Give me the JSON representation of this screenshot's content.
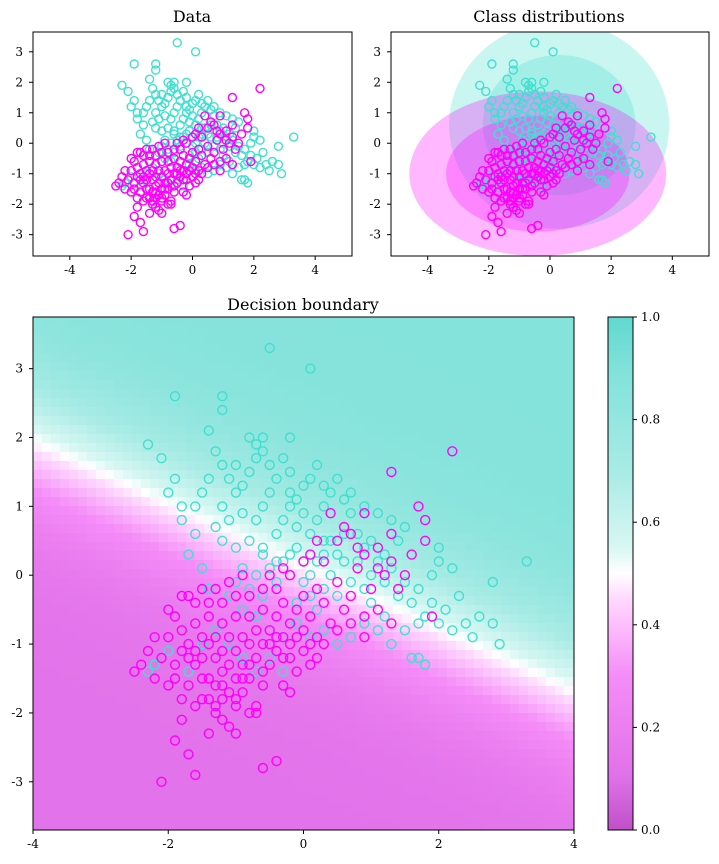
{
  "colors": {
    "class0": "#ff00ff",
    "class1": "#40e0d0"
  },
  "chart_data": [
    {
      "name": "data",
      "type": "scatter",
      "title": "Data",
      "xticks": [
        "-4",
        "-2",
        "0",
        "2",
        "4"
      ],
      "yticks": [
        "3",
        "2",
        "1",
        "0",
        "-1",
        "-2",
        "-3"
      ],
      "xlim": [
        -5.2,
        5.2
      ],
      "ylim": [
        -3.7,
        3.65
      ]
    },
    {
      "name": "class-distributions",
      "type": "scatter",
      "title": "Class distributions",
      "xticks": [
        "-4",
        "-2",
        "0",
        "2",
        "4"
      ],
      "yticks": [
        "3",
        "2",
        "1",
        "0",
        "-1",
        "-2",
        "-3"
      ],
      "xlim": [
        -5.2,
        5.2
      ],
      "ylim": [
        -3.7,
        3.65
      ],
      "ellipses": [
        {
          "class": "class1",
          "cx": 0.3,
          "cy": 0.6,
          "rx": 3.6,
          "ry": 3.4,
          "opacity": 0.28
        },
        {
          "class": "class1",
          "cx": 0.3,
          "cy": 0.6,
          "rx": 2.5,
          "ry": 2.3,
          "opacity": 0.28
        },
        {
          "class": "class0",
          "cx": -0.4,
          "cy": -1.0,
          "rx": 4.2,
          "ry": 2.7,
          "opacity": 0.28
        },
        {
          "class": "class0",
          "cx": -0.4,
          "cy": -1.0,
          "rx": 3.0,
          "ry": 1.9,
          "opacity": 0.28
        }
      ]
    },
    {
      "name": "decision-boundary",
      "type": "heatmap",
      "title": "Decision boundary",
      "xticks": [
        "-4",
        "-2",
        "0",
        "2",
        "4"
      ],
      "yticks": [
        "3",
        "2",
        "1",
        "0",
        "-1",
        "-2",
        "-3"
      ],
      "xlim": [
        -4,
        4
      ],
      "ylim": [
        -3.7,
        3.75
      ],
      "boundary": {
        "w0": -0.3,
        "w1": 1.0,
        "w2": 2.2,
        "scale": 1.4
      },
      "colorbar": {
        "ticks": [
          "1.0",
          "0.8",
          "0.6",
          "0.4",
          "0.2",
          "0.0"
        ],
        "range": [
          0,
          1
        ]
      }
    }
  ],
  "points": {
    "class1": [
      [
        -2.3,
        1.9
      ],
      [
        -2.1,
        1.7
      ],
      [
        -1.9,
        1.4
      ],
      [
        -1.8,
        1.0
      ],
      [
        -2.0,
        1.2
      ],
      [
        -1.8,
        0.8
      ],
      [
        -1.6,
        0.6
      ],
      [
        -1.7,
        0.3
      ],
      [
        -1.5,
        0.1
      ],
      [
        -1.4,
        -0.2
      ],
      [
        -1.9,
        2.6
      ],
      [
        -1.4,
        2.1
      ],
      [
        -1.3,
        1.8
      ],
      [
        -1.2,
        1.6
      ],
      [
        -1.1,
        1.4
      ],
      [
        -1.4,
        1.4
      ],
      [
        -1.5,
        1.2
      ],
      [
        -1.6,
        1.0
      ],
      [
        -1.2,
        1.0
      ],
      [
        -1.0,
        1.2
      ],
      [
        -1.0,
        1.6
      ],
      [
        -0.9,
        1.3
      ],
      [
        -0.8,
        1.5
      ],
      [
        -0.7,
        1.7
      ],
      [
        -0.7,
        1.9
      ],
      [
        -0.8,
        2.0
      ],
      [
        -0.6,
        1.8
      ],
      [
        -0.5,
        1.6
      ],
      [
        -0.4,
        1.4
      ],
      [
        -0.5,
        1.2
      ],
      [
        -0.6,
        1.0
      ],
      [
        -0.7,
        0.8
      ],
      [
        -0.9,
        0.9
      ],
      [
        -1.1,
        0.8
      ],
      [
        -1.3,
        0.7
      ],
      [
        -1.2,
        0.5
      ],
      [
        -1.0,
        0.4
      ],
      [
        -0.8,
        0.5
      ],
      [
        -0.6,
        0.4
      ],
      [
        -0.4,
        0.6
      ],
      [
        -0.3,
        0.8
      ],
      [
        -0.2,
        1.0
      ],
      [
        -0.1,
        0.7
      ],
      [
        0.0,
        0.9
      ],
      [
        0.1,
        0.6
      ],
      [
        0.2,
        0.8
      ],
      [
        0.3,
        1.0
      ],
      [
        0.4,
        1.2
      ],
      [
        0.3,
        0.5
      ],
      [
        0.5,
        0.3
      ],
      [
        0.6,
        0.6
      ],
      [
        0.7,
        0.9
      ],
      [
        0.6,
        1.1
      ],
      [
        0.5,
        1.4
      ],
      [
        0.3,
        1.3
      ],
      [
        0.2,
        1.6
      ],
      [
        0.1,
        1.4
      ],
      [
        -0.2,
        1.5
      ],
      [
        -0.3,
        1.7
      ],
      [
        -1.2,
        2.4
      ],
      [
        -1.2,
        2.6
      ],
      [
        -0.6,
        2.0
      ],
      [
        -0.2,
        2.0
      ],
      [
        -0.5,
        3.3
      ],
      [
        0.1,
        3.0
      ],
      [
        0.8,
        0.2
      ],
      [
        0.9,
        0.4
      ],
      [
        1.0,
        0.0
      ],
      [
        1.1,
        0.2
      ],
      [
        1.2,
        -0.1
      ],
      [
        1.3,
        0.1
      ],
      [
        1.4,
        -0.3
      ],
      [
        1.5,
        -0.1
      ],
      [
        1.6,
        -0.4
      ],
      [
        1.7,
        -0.2
      ],
      [
        1.8,
        -0.6
      ],
      [
        1.9,
        -0.4
      ],
      [
        2.0,
        -0.7
      ],
      [
        2.1,
        -0.5
      ],
      [
        2.2,
        -0.8
      ],
      [
        2.4,
        -0.7
      ],
      [
        2.5,
        -0.9
      ],
      [
        2.6,
        -0.6
      ],
      [
        2.8,
        -0.7
      ],
      [
        2.8,
        -0.1
      ],
      [
        3.3,
        0.2
      ],
      [
        2.9,
        -1.0
      ],
      [
        2.3,
        -0.3
      ],
      [
        2.2,
        0.1
      ],
      [
        2.0,
        0.2
      ],
      [
        2.0,
        0.4
      ],
      [
        1.9,
        0.0
      ],
      [
        1.7,
        -0.7
      ],
      [
        1.5,
        -0.8
      ],
      [
        1.2,
        -0.6
      ],
      [
        1.0,
        -0.4
      ],
      [
        0.9,
        -0.2
      ],
      [
        0.7,
        -0.1
      ],
      [
        0.5,
        -0.3
      ],
      [
        0.4,
        0.0
      ],
      [
        0.3,
        -0.2
      ],
      [
        0.2,
        -0.5
      ],
      [
        0.1,
        -0.3
      ],
      [
        0.0,
        -0.1
      ],
      [
        -0.1,
        -0.4
      ],
      [
        -0.2,
        0.0
      ],
      [
        -0.3,
        0.2
      ],
      [
        -0.4,
        -0.1
      ],
      [
        -0.5,
        0.1
      ],
      [
        -0.6,
        -0.3
      ],
      [
        -0.7,
        0.0
      ],
      [
        -0.8,
        -0.2
      ],
      [
        -0.9,
        0.1
      ],
      [
        -1.0,
        -0.1
      ],
      [
        -1.1,
        -0.3
      ],
      [
        -0.9,
        -0.5
      ],
      [
        -0.7,
        -0.6
      ],
      [
        -0.5,
        -0.8
      ],
      [
        -0.3,
        -0.9
      ],
      [
        -0.1,
        -0.7
      ],
      [
        0.1,
        -0.9
      ],
      [
        0.3,
        -0.8
      ],
      [
        0.5,
        -1.0
      ],
      [
        0.7,
        -0.9
      ],
      [
        0.9,
        -0.7
      ],
      [
        1.1,
        -0.8
      ],
      [
        1.3,
        -1.0
      ],
      [
        1.7,
        -1.2
      ],
      [
        1.8,
        -1.3
      ],
      [
        1.6,
        -1.2
      ],
      [
        -1.7,
        -1.4
      ],
      [
        -1.5,
        -1.0
      ],
      [
        -1.3,
        -0.8
      ],
      [
        -1.1,
        -1.0
      ],
      [
        -0.9,
        -1.2
      ],
      [
        -0.7,
        -1.4
      ],
      [
        -0.5,
        -1.2
      ],
      [
        -0.3,
        -1.4
      ],
      [
        -2.2,
        -1.3
      ],
      [
        -2.3,
        -1.4
      ],
      [
        -2.0,
        -1.1
      ],
      [
        0.3,
        0.3
      ],
      [
        0.4,
        0.5
      ],
      [
        0.6,
        0.2
      ],
      [
        0.8,
        0.6
      ],
      [
        1.0,
        0.5
      ],
      [
        1.2,
        0.3
      ],
      [
        1.4,
        0.5
      ],
      [
        1.5,
        0.7
      ],
      [
        1.3,
        0.8
      ],
      [
        1.1,
        0.9
      ],
      [
        0.9,
        1.0
      ],
      [
        0.7,
        1.2
      ],
      [
        -0.1,
        1.1
      ],
      [
        0.0,
        1.3
      ],
      [
        -0.2,
        1.2
      ],
      [
        0.2,
        0.2
      ],
      [
        0.0,
        0.2
      ],
      [
        -0.2,
        0.3
      ],
      [
        -0.4,
        0.2
      ],
      [
        -0.6,
        0.3
      ],
      [
        -0.1,
        0.4
      ],
      [
        0.1,
        0.0
      ]
    ],
    "class0": [
      [
        -2.1,
        -1.2
      ],
      [
        -2.0,
        -0.9
      ],
      [
        -1.9,
        -1.5
      ],
      [
        -1.8,
        -1.1
      ],
      [
        -1.8,
        -0.8
      ],
      [
        -1.7,
        -1.6
      ],
      [
        -1.7,
        -1.0
      ],
      [
        -1.6,
        -1.3
      ],
      [
        -1.6,
        -0.7
      ],
      [
        -1.5,
        -1.8
      ],
      [
        -1.5,
        -1.2
      ],
      [
        -1.5,
        -0.9
      ],
      [
        -1.4,
        -1.5
      ],
      [
        -1.4,
        -1.0
      ],
      [
        -1.4,
        -0.6
      ],
      [
        -1.3,
        -2.0
      ],
      [
        -1.3,
        -1.6
      ],
      [
        -1.3,
        -1.2
      ],
      [
        -1.3,
        -0.9
      ],
      [
        -1.2,
        -1.8
      ],
      [
        -1.2,
        -1.4
      ],
      [
        -1.2,
        -1.1
      ],
      [
        -1.2,
        -0.7
      ],
      [
        -1.1,
        -2.2
      ],
      [
        -1.1,
        -1.7
      ],
      [
        -1.1,
        -1.3
      ],
      [
        -1.1,
        -0.9
      ],
      [
        -1.0,
        -1.9
      ],
      [
        -1.0,
        -1.5
      ],
      [
        -1.0,
        -1.1
      ],
      [
        -1.0,
        -0.6
      ],
      [
        -0.9,
        -1.7
      ],
      [
        -0.9,
        -1.3
      ],
      [
        -0.9,
        -0.9
      ],
      [
        -0.8,
        -1.5
      ],
      [
        -0.8,
        -1.0
      ],
      [
        -0.8,
        -0.6
      ],
      [
        -0.7,
        -1.9
      ],
      [
        -0.7,
        -1.2
      ],
      [
        -0.7,
        -0.8
      ],
      [
        -0.6,
        -1.6
      ],
      [
        -0.6,
        -1.0
      ],
      [
        -0.6,
        -0.5
      ],
      [
        -0.5,
        -1.3
      ],
      [
        -0.5,
        -0.8
      ],
      [
        -0.4,
        -1.1
      ],
      [
        -0.4,
        -0.6
      ],
      [
        -0.3,
        -0.9
      ],
      [
        -0.3,
        -0.4
      ],
      [
        -0.2,
        -1.2
      ],
      [
        -0.2,
        -0.7
      ],
      [
        -0.1,
        -0.5
      ],
      [
        0.0,
        -0.8
      ],
      [
        0.0,
        -0.3
      ],
      [
        0.1,
        -0.6
      ],
      [
        0.2,
        -0.2
      ],
      [
        0.3,
        -0.4
      ],
      [
        0.4,
        -0.7
      ],
      [
        0.5,
        -0.1
      ],
      [
        0.6,
        -0.5
      ],
      [
        0.7,
        -0.3
      ],
      [
        0.8,
        0.1
      ],
      [
        0.9,
        -0.6
      ],
      [
        1.0,
        -0.2
      ],
      [
        1.1,
        0.4
      ],
      [
        1.2,
        0.0
      ],
      [
        1.3,
        0.6
      ],
      [
        1.4,
        -0.2
      ],
      [
        1.6,
        0.3
      ],
      [
        1.8,
        0.5
      ],
      [
        1.9,
        -0.6
      ],
      [
        1.7,
        1.0
      ],
      [
        1.8,
        0.8
      ],
      [
        2.2,
        1.8
      ],
      [
        1.3,
        1.5
      ],
      [
        0.9,
        0.9
      ],
      [
        0.8,
        0.4
      ],
      [
        0.6,
        0.7
      ],
      [
        0.4,
        0.9
      ],
      [
        0.2,
        0.5
      ],
      [
        0.0,
        0.2
      ],
      [
        -0.2,
        0.0
      ],
      [
        -0.4,
        -0.2
      ],
      [
        -0.6,
        -0.2
      ],
      [
        -0.8,
        -0.3
      ],
      [
        -1.0,
        -0.3
      ],
      [
        -1.2,
        -0.4
      ],
      [
        -1.4,
        -0.4
      ],
      [
        -1.6,
        -0.4
      ],
      [
        -1.8,
        -0.3
      ],
      [
        -2.0,
        -0.5
      ],
      [
        -2.2,
        -1.5
      ],
      [
        -2.5,
        -1.4
      ],
      [
        -2.1,
        -3.0
      ],
      [
        -1.9,
        -2.4
      ],
      [
        -1.8,
        -2.1
      ],
      [
        -1.7,
        -2.6
      ],
      [
        -1.6,
        -2.9
      ],
      [
        -1.4,
        -2.3
      ],
      [
        -1.3,
        -1.9
      ],
      [
        -1.2,
        -2.1
      ],
      [
        -1.0,
        -2.3
      ],
      [
        -0.8,
        -2.0
      ],
      [
        -0.7,
        -2.0
      ],
      [
        -0.6,
        -2.8
      ],
      [
        -0.4,
        -2.7
      ],
      [
        -0.3,
        -1.6
      ],
      [
        -0.2,
        -1.7
      ],
      [
        -0.1,
        -1.4
      ],
      [
        0.0,
        -1.1
      ],
      [
        0.1,
        -1.3
      ],
      [
        0.2,
        -0.9
      ],
      [
        0.3,
        -1.0
      ],
      [
        0.5,
        -0.8
      ],
      [
        0.7,
        -0.7
      ],
      [
        0.9,
        -0.9
      ],
      [
        1.1,
        -0.5
      ],
      [
        1.3,
        -0.7
      ],
      [
        -2.4,
        -1.3
      ],
      [
        -2.3,
        -1.1
      ],
      [
        -2.2,
        -0.9
      ],
      [
        -1.9,
        -0.6
      ],
      [
        -1.7,
        -0.3
      ],
      [
        -1.5,
        -0.2
      ],
      [
        -1.3,
        -0.2
      ],
      [
        -1.1,
        -0.1
      ],
      [
        -0.9,
        0.0
      ],
      [
        -0.5,
        0.0
      ],
      [
        -0.3,
        0.1
      ],
      [
        0.1,
        0.3
      ],
      [
        0.3,
        0.2
      ],
      [
        0.5,
        0.5
      ],
      [
        0.7,
        0.6
      ],
      [
        0.9,
        0.3
      ],
      [
        1.1,
        0.1
      ],
      [
        1.3,
        0.2
      ],
      [
        1.5,
        0.0
      ],
      [
        -1.6,
        -1.9
      ],
      [
        -1.5,
        -1.5
      ],
      [
        -1.4,
        -1.8
      ],
      [
        -1.2,
        -1.6
      ],
      [
        -1.0,
        -1.8
      ],
      [
        -0.9,
        -1.5
      ],
      [
        -0.8,
        -1.3
      ],
      [
        -0.6,
        -1.4
      ],
      [
        -0.5,
        -1.0
      ],
      [
        -0.4,
        -0.9
      ],
      [
        -0.3,
        -1.2
      ],
      [
        -0.2,
        -1.0
      ],
      [
        -0.1,
        -0.9
      ],
      [
        0.1,
        -1.0
      ],
      [
        0.2,
        -1.2
      ],
      [
        -2.0,
        -1.6
      ],
      [
        -1.9,
        -1.3
      ],
      [
        -1.8,
        -1.8
      ],
      [
        -1.7,
        -1.2
      ],
      [
        -1.6,
        -1.1
      ]
    ]
  }
}
